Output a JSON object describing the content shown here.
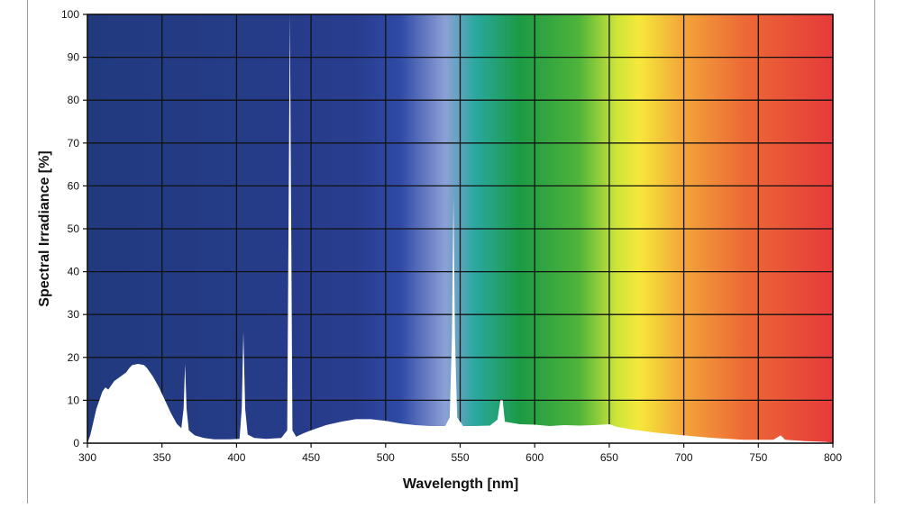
{
  "chart_data": {
    "type": "area",
    "title": "",
    "xlabel": "Wavelength [nm]",
    "ylabel": "Spectral Irradiance [%]",
    "xlim": [
      300,
      800
    ],
    "ylim": [
      0,
      100
    ],
    "x_ticks": [
      300,
      350,
      400,
      450,
      500,
      550,
      600,
      650,
      700,
      750,
      800
    ],
    "y_ticks": [
      0,
      10,
      20,
      30,
      40,
      50,
      60,
      70,
      80,
      90,
      100
    ],
    "grid": true,
    "background": "visible color spectrum from violet-blue (300 nm) to red (800 nm)",
    "series": [
      {
        "values": [
          [
            300,
            0
          ],
          [
            302,
            2
          ],
          [
            304,
            5
          ],
          [
            306,
            8
          ],
          [
            308,
            10
          ],
          [
            310,
            12
          ],
          [
            312,
            13
          ],
          [
            314,
            12.5
          ],
          [
            316,
            13.5
          ],
          [
            318,
            14.5
          ],
          [
            320,
            15
          ],
          [
            322,
            15.5
          ],
          [
            324,
            16
          ],
          [
            326,
            16.5
          ],
          [
            328,
            17.5
          ],
          [
            330,
            18.2
          ],
          [
            334,
            18.5
          ],
          [
            338,
            18.2
          ],
          [
            340,
            17.5
          ],
          [
            344,
            15.5
          ],
          [
            348,
            13
          ],
          [
            352,
            10
          ],
          [
            356,
            7
          ],
          [
            360,
            4.5
          ],
          [
            363,
            3.5
          ],
          [
            364.5,
            8
          ],
          [
            365.5,
            18.5
          ],
          [
            366.5,
            8
          ],
          [
            368,
            3
          ],
          [
            372,
            1.8
          ],
          [
            378,
            1.2
          ],
          [
            385,
            0.9
          ],
          [
            395,
            0.9
          ],
          [
            402,
            1
          ],
          [
            403.5,
            8
          ],
          [
            404.6,
            26
          ],
          [
            405.8,
            8
          ],
          [
            407.5,
            2
          ],
          [
            412,
            1.2
          ],
          [
            420,
            1
          ],
          [
            430,
            1.2
          ],
          [
            434,
            3
          ],
          [
            435.8,
            100
          ],
          [
            437.5,
            3
          ],
          [
            440,
            1.5
          ],
          [
            445,
            2.3
          ],
          [
            450,
            3
          ],
          [
            460,
            4.2
          ],
          [
            470,
            5
          ],
          [
            480,
            5.6
          ],
          [
            490,
            5.6
          ],
          [
            500,
            5.2
          ],
          [
            510,
            4.6
          ],
          [
            520,
            4.2
          ],
          [
            530,
            4
          ],
          [
            540,
            4
          ],
          [
            543,
            6
          ],
          [
            544.5,
            25
          ],
          [
            545.5,
            57
          ],
          [
            546.5,
            25
          ],
          [
            548,
            6
          ],
          [
            552,
            4
          ],
          [
            560,
            4
          ],
          [
            570,
            4.1
          ],
          [
            575,
            5.5
          ],
          [
            577,
            10
          ],
          [
            578.5,
            10
          ],
          [
            580,
            5
          ],
          [
            590,
            4.4
          ],
          [
            600,
            4.3
          ],
          [
            610,
            4
          ],
          [
            620,
            4.2
          ],
          [
            630,
            4.1
          ],
          [
            640,
            4.2
          ],
          [
            650,
            4.4
          ],
          [
            655,
            3.8
          ],
          [
            665,
            3.2
          ],
          [
            680,
            2.5
          ],
          [
            700,
            1.8
          ],
          [
            720,
            1.2
          ],
          [
            740,
            0.8
          ],
          [
            760,
            0.8
          ],
          [
            765,
            1.8
          ],
          [
            768,
            0.8
          ],
          [
            780,
            0.5
          ],
          [
            795,
            0.3
          ],
          [
            800,
            0.1
          ]
        ]
      }
    ]
  }
}
